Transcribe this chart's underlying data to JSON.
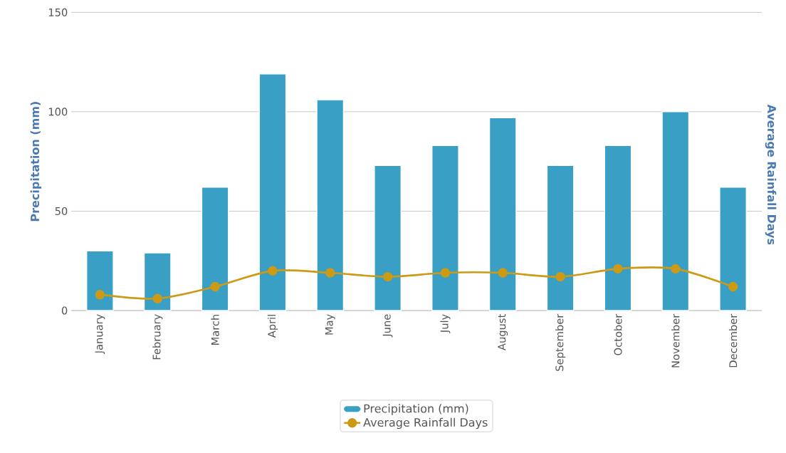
{
  "chart_data": {
    "type": "bar",
    "ylabel": "Precipitation (mm)",
    "y2label": "Average Rainfall Days",
    "categories": [
      "January",
      "February",
      "March",
      "April",
      "May",
      "June",
      "July",
      "August",
      "September",
      "October",
      "November",
      "December"
    ],
    "series": [
      {
        "name": "Precipitation (mm)",
        "color": "#3a9fc4",
        "values": [
          30,
          29,
          62,
          119,
          106,
          73,
          83,
          97,
          73,
          83,
          100,
          62
        ]
      },
      {
        "name": "Average Rainfall Days",
        "type": "line",
        "color": "#cc9a14",
        "marker": "circle",
        "values": [
          8,
          6,
          12,
          20,
          19,
          17,
          19,
          19,
          17,
          21,
          21,
          12
        ]
      }
    ],
    "ylim": [
      0,
      150
    ],
    "yticks": [
      0,
      50,
      100,
      150
    ],
    "grid": "y",
    "legend": "bottom"
  }
}
